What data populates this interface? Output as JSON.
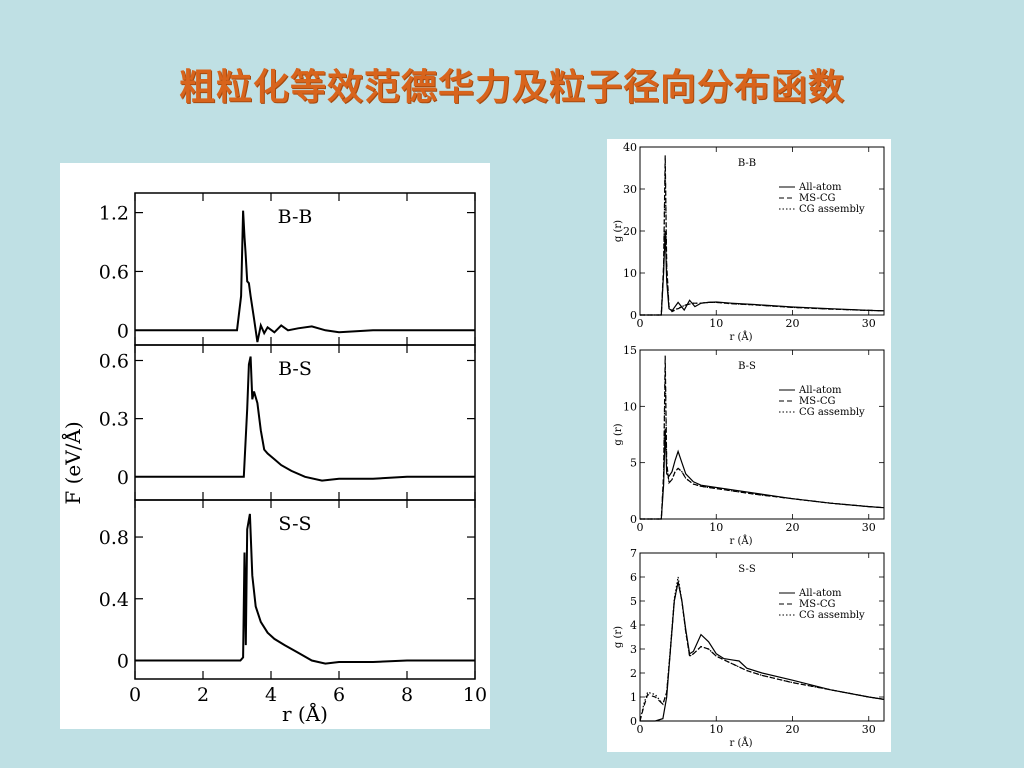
{
  "slide": {
    "title": "粗粒化等效范德华力及粒子径向分布函数",
    "background": "#bfe0e4",
    "title_color": "#d8641c"
  },
  "left_figure": {
    "ylabel": "F (eV/Å)",
    "xlabel": "r (Å)",
    "x_ticks": [
      "0",
      "2",
      "4",
      "6",
      "8",
      "10"
    ]
  },
  "right_figure": {
    "xlabel": "r (Å)",
    "ylabel": "g (r)",
    "legend": [
      "All-atom",
      "MS-CG",
      "CG assembly"
    ]
  },
  "chart_data": [
    {
      "type": "line",
      "title": "B-B",
      "xlabel": "r (Å)",
      "ylabel": "F (eV/Å)",
      "xlim": [
        0,
        10
      ],
      "ylim": [
        -0.15,
        1.4
      ],
      "yticks": [
        "1.2",
        "0.6",
        "0"
      ],
      "series": [
        {
          "x": [
            0,
            3.0,
            3.12,
            3.18,
            3.22,
            3.25,
            3.3,
            3.35,
            3.4,
            3.5,
            3.6,
            3.7,
            3.8,
            3.9,
            4.1,
            4.3,
            4.5,
            4.8,
            5.2,
            5.6,
            6.0,
            6.5,
            7.0,
            8.0,
            9.0,
            10.0
          ],
          "y": [
            0,
            0,
            0.35,
            1.22,
            0.95,
            0.8,
            0.5,
            0.48,
            0.35,
            0.12,
            -0.12,
            0.05,
            -0.03,
            0.03,
            -0.02,
            0.05,
            0.0,
            0.02,
            0.04,
            0.0,
            -0.02,
            -0.01,
            0.0,
            0.0,
            0.0,
            0.0
          ]
        }
      ]
    },
    {
      "type": "line",
      "title": "B-S",
      "xlabel": "r (Å)",
      "ylabel": "F (eV/Å)",
      "xlim": [
        0,
        10
      ],
      "ylim": [
        -0.12,
        0.68
      ],
      "yticks": [
        "0.6",
        "0.3",
        "0"
      ],
      "series": [
        {
          "x": [
            0,
            3.2,
            3.3,
            3.35,
            3.4,
            3.45,
            3.5,
            3.6,
            3.7,
            3.8,
            3.9,
            4.1,
            4.3,
            4.6,
            5.0,
            5.5,
            6.0,
            7.0,
            8.0,
            9.0,
            10.0
          ],
          "y": [
            0,
            0,
            0.35,
            0.58,
            0.62,
            0.4,
            0.44,
            0.38,
            0.24,
            0.14,
            0.12,
            0.09,
            0.06,
            0.03,
            0.0,
            -0.02,
            -0.01,
            -0.01,
            0.0,
            0.0,
            0.0
          ]
        }
      ]
    },
    {
      "type": "line",
      "title": "S-S",
      "xlabel": "r (Å)",
      "ylabel": "F (eV/Å)",
      "xlim": [
        0,
        10
      ],
      "ylim": [
        -0.12,
        1.04
      ],
      "yticks": [
        "0.8",
        "0.4",
        "0"
      ],
      "series": [
        {
          "x": [
            0,
            3.1,
            3.18,
            3.22,
            3.26,
            3.3,
            3.38,
            3.45,
            3.55,
            3.7,
            3.9,
            4.1,
            4.4,
            4.8,
            5.2,
            5.6,
            6.0,
            7.0,
            8.0,
            9.0,
            10.0
          ],
          "y": [
            0,
            0,
            0.02,
            0.7,
            0.1,
            0.85,
            0.95,
            0.55,
            0.35,
            0.25,
            0.18,
            0.14,
            0.1,
            0.05,
            0.0,
            -0.02,
            -0.01,
            -0.01,
            0.0,
            0.0,
            0.0
          ]
        }
      ]
    },
    {
      "type": "line",
      "title": "B-B",
      "xlabel": "r (Å)",
      "ylabel": "g (r)",
      "xlim": [
        0,
        32
      ],
      "ylim": [
        0,
        40
      ],
      "xticks": [
        "0",
        "10",
        "20",
        "30"
      ],
      "yticks": [
        "0",
        "10",
        "20",
        "30",
        "40"
      ],
      "series": [
        {
          "name": "All-atom",
          "style": "solid",
          "x": [
            0,
            2.8,
            3.1,
            3.3,
            3.5,
            3.8,
            4.2,
            5.0,
            5.8,
            6.5,
            7.2,
            8.0,
            9.0,
            10.0,
            12,
            15,
            20,
            25,
            30,
            32
          ],
          "y": [
            0,
            0,
            10,
            20,
            8,
            1.5,
            1.0,
            3.0,
            1.2,
            3.5,
            2.0,
            2.8,
            3.0,
            3.1,
            2.8,
            2.5,
            1.9,
            1.5,
            1.1,
            1.0
          ]
        },
        {
          "name": "MS-CG",
          "style": "dashed",
          "x": [
            0,
            2.8,
            3.1,
            3.3,
            3.5,
            3.8,
            4.2,
            5.0,
            6.0,
            7.0,
            8.0,
            9.0,
            10.0,
            12,
            15,
            20,
            25,
            30,
            32
          ],
          "y": [
            0,
            0,
            12,
            38,
            12,
            2.0,
            0.8,
            1.5,
            2.4,
            2.8,
            2.8,
            3.0,
            3.0,
            2.7,
            2.4,
            1.8,
            1.4,
            1.1,
            1.0
          ]
        },
        {
          "name": "CG assembly",
          "style": "dotted",
          "x": [
            0,
            2.8,
            3.1,
            3.3,
            3.5,
            3.8,
            4.2,
            5.0,
            6.0,
            7.0,
            8.0,
            9.0,
            10.0,
            12,
            15,
            20,
            25,
            30,
            32
          ],
          "y": [
            0,
            0,
            11,
            36,
            11,
            2.0,
            0.9,
            1.6,
            2.4,
            2.8,
            2.8,
            3.0,
            3.0,
            2.7,
            2.4,
            1.8,
            1.4,
            1.1,
            1.0
          ]
        }
      ]
    },
    {
      "type": "line",
      "title": "B-S",
      "xlabel": "r (Å)",
      "ylabel": "g (r)",
      "xlim": [
        0,
        32
      ],
      "ylim": [
        0,
        15
      ],
      "xticks": [
        "0",
        "10",
        "20",
        "30"
      ],
      "yticks": [
        "0",
        "5",
        "10",
        "15"
      ],
      "series": [
        {
          "name": "All-atom",
          "style": "solid",
          "x": [
            0,
            2.8,
            3.1,
            3.3,
            3.5,
            3.8,
            4.2,
            4.6,
            5.0,
            5.5,
            6.0,
            7.0,
            8.0,
            10,
            12,
            15,
            20,
            25,
            30,
            32
          ],
          "y": [
            0,
            0,
            3.0,
            8.0,
            4.0,
            3.8,
            4.2,
            5.2,
            6.0,
            5.0,
            4.0,
            3.3,
            3.0,
            2.8,
            2.6,
            2.3,
            1.8,
            1.4,
            1.1,
            1.0
          ]
        },
        {
          "name": "MS-CG",
          "style": "dashed",
          "x": [
            0,
            2.8,
            3.1,
            3.3,
            3.5,
            3.8,
            4.2,
            4.6,
            5.0,
            5.5,
            6.0,
            7.0,
            8.0,
            10,
            12,
            15,
            20,
            25,
            30,
            32
          ],
          "y": [
            0,
            0,
            4.0,
            14.5,
            5.0,
            3.2,
            3.5,
            4.2,
            4.5,
            4.2,
            3.6,
            3.1,
            2.9,
            2.7,
            2.5,
            2.2,
            1.8,
            1.4,
            1.1,
            1.0
          ]
        },
        {
          "name": "CG assembly",
          "style": "dotted",
          "x": [
            0,
            2.8,
            3.1,
            3.3,
            3.5,
            3.8,
            4.2,
            4.6,
            5.0,
            5.5,
            6.0,
            7.0,
            8.0,
            10,
            12,
            15,
            20,
            25,
            30,
            32
          ],
          "y": [
            0,
            0,
            3.8,
            13.5,
            4.8,
            3.2,
            3.5,
            4.2,
            4.5,
            4.2,
            3.6,
            3.1,
            2.9,
            2.7,
            2.5,
            2.2,
            1.8,
            1.4,
            1.1,
            1.0
          ]
        }
      ]
    },
    {
      "type": "line",
      "title": "S-S",
      "xlabel": "r (Å)",
      "ylabel": "g (r)",
      "xlim": [
        0,
        32
      ],
      "ylim": [
        0,
        7
      ],
      "xticks": [
        "0",
        "10",
        "20",
        "30"
      ],
      "yticks": [
        "0",
        "1",
        "2",
        "3",
        "4",
        "5",
        "6",
        "7"
      ],
      "series": [
        {
          "name": "All-atom",
          "style": "solid",
          "x": [
            0,
            1.0,
            2.0,
            3.0,
            3.5,
            4.0,
            4.5,
            5.0,
            5.5,
            6.0,
            6.5,
            7.0,
            8.0,
            9.0,
            10.0,
            11.0,
            12.0,
            13.0,
            14.0,
            16.0,
            20.0,
            25.0,
            30.0,
            32.0
          ],
          "y": [
            0,
            0,
            0,
            0.1,
            1.0,
            3.0,
            5.0,
            5.8,
            5.0,
            3.8,
            2.8,
            2.9,
            3.6,
            3.3,
            2.8,
            2.6,
            2.55,
            2.5,
            2.2,
            2.0,
            1.7,
            1.3,
            1.0,
            0.9
          ]
        },
        {
          "name": "MS-CG",
          "style": "dashed",
          "x": [
            0,
            0.5,
            1.0,
            2.0,
            3.0,
            3.5,
            4.0,
            4.5,
            5.0,
            5.5,
            6.0,
            6.5,
            7.0,
            8.0,
            9.0,
            10.0,
            12.0,
            14.0,
            16.0,
            20.0,
            25.0,
            30.0,
            32.0
          ],
          "y": [
            0,
            0.6,
            1.1,
            1.0,
            0.7,
            1.2,
            3.0,
            5.0,
            5.8,
            5.0,
            3.7,
            2.7,
            2.8,
            3.1,
            3.0,
            2.7,
            2.4,
            2.1,
            1.9,
            1.6,
            1.3,
            1.0,
            0.9
          ]
        },
        {
          "name": "CG assembly",
          "style": "dotted",
          "x": [
            0,
            0.5,
            1.0,
            2.0,
            3.0,
            3.5,
            4.0,
            4.5,
            5.0,
            5.5,
            6.0,
            6.5,
            7.0,
            8.0,
            9.0,
            10.0,
            12.0,
            14.0,
            16.0,
            20.0,
            25.0,
            30.0,
            32.0
          ],
          "y": [
            0,
            0.7,
            1.2,
            1.1,
            0.7,
            1.2,
            3.1,
            5.1,
            6.0,
            5.0,
            3.7,
            2.7,
            2.8,
            3.1,
            3.0,
            2.7,
            2.4,
            2.1,
            1.9,
            1.6,
            1.3,
            1.0,
            0.9
          ]
        }
      ]
    }
  ]
}
